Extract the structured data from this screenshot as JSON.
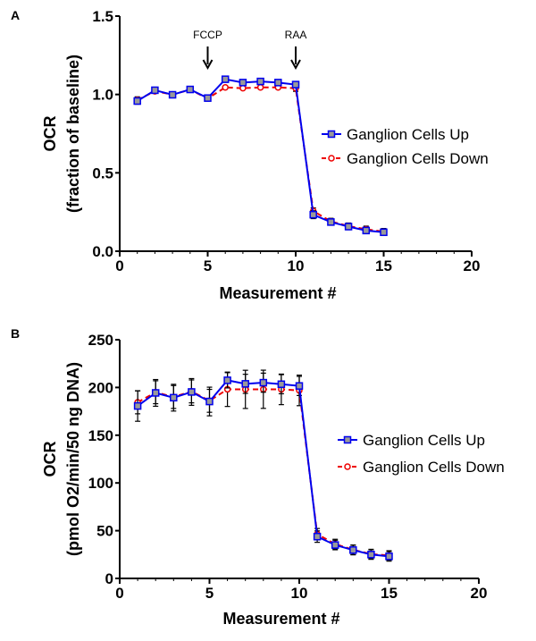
{
  "chart_data": [
    {
      "panel_label": "A",
      "type": "line",
      "xlabel": "Measurement #",
      "ylabel_line1": "OCR",
      "ylabel_line2": "(fraction of baseline)",
      "xlim": [
        0,
        20
      ],
      "ylim": [
        0,
        1.5
      ],
      "xticks": [
        "0",
        "5",
        "10",
        "15",
        "20"
      ],
      "yticks": [
        "0.0",
        "0.5",
        "1.0",
        "1.5"
      ],
      "grid": false,
      "legend_position": "right",
      "annotations": [
        {
          "text": "FCCP",
          "x": 5
        },
        {
          "text": "RAA",
          "x": 10
        }
      ],
      "x": [
        1,
        2,
        3,
        4,
        5,
        6,
        7,
        8,
        9,
        10,
        11,
        12,
        13,
        14,
        15
      ],
      "series": [
        {
          "name": "Ganglion Cells Up",
          "color": "#0000ee",
          "marker": "square",
          "dash": false,
          "values": [
            0.958,
            1.027,
            0.998,
            1.032,
            0.977,
            1.097,
            1.076,
            1.083,
            1.076,
            1.063,
            0.233,
            0.186,
            0.157,
            0.132,
            0.121
          ],
          "errors": [
            0.02,
            0.01,
            0.01,
            0.01,
            0.01,
            0.01,
            0.01,
            0.01,
            0.01,
            0.02,
            0.025,
            0.02,
            0.02,
            0.02,
            0.02
          ]
        },
        {
          "name": "Ganglion Cells Down",
          "color": "#ee0000",
          "marker": "circle",
          "dash": true,
          "values": [
            0.965,
            1.02,
            1.0,
            1.03,
            0.975,
            1.045,
            1.04,
            1.045,
            1.045,
            1.04,
            0.256,
            0.19,
            0.16,
            0.14,
            0.125
          ],
          "errors": [
            0.02,
            0.01,
            0.01,
            0.01,
            0.01,
            0.01,
            0.01,
            0.01,
            0.01,
            0.02,
            0.02,
            0.02,
            0.02,
            0.02,
            0.02
          ]
        }
      ]
    },
    {
      "panel_label": "B",
      "type": "line",
      "xlabel": "Measurement #",
      "ylabel_line1": "OCR",
      "ylabel_line2": "(pmol O2/min/50 ng DNA)",
      "xlim": [
        0,
        20
      ],
      "ylim": [
        0,
        250
      ],
      "xticks": [
        "0",
        "5",
        "10",
        "15",
        "20"
      ],
      "yticks": [
        "0",
        "50",
        "100",
        "150",
        "200",
        "250"
      ],
      "grid": false,
      "legend_position": "right",
      "x": [
        1,
        2,
        3,
        4,
        5,
        6,
        7,
        8,
        9,
        10,
        11,
        12,
        13,
        14,
        15
      ],
      "series": [
        {
          "name": "Ganglion Cells Up",
          "color": "#0000ee",
          "marker": "square",
          "dash": false,
          "values": [
            180.6,
            194.3,
            189.3,
            195.3,
            185.3,
            207.5,
            203.8,
            205,
            203.4,
            201.6,
            43.8,
            35,
            29.7,
            25,
            23.1
          ],
          "errors": [
            16,
            14,
            14,
            14,
            15,
            8,
            10,
            10,
            10,
            10,
            6,
            5,
            5,
            5,
            5
          ]
        },
        {
          "name": "Ganglion Cells Down",
          "color": "#ee0000",
          "marker": "circle",
          "dash": true,
          "values": [
            184.4,
            195,
            190,
            195.9,
            186,
            198.1,
            198,
            198.1,
            198,
            196.9,
            46.3,
            36,
            30,
            25.5,
            24
          ],
          "errors": [
            12,
            12,
            12,
            12,
            12,
            18,
            20,
            20,
            16,
            16,
            6,
            5,
            5,
            5,
            5
          ]
        }
      ]
    }
  ]
}
